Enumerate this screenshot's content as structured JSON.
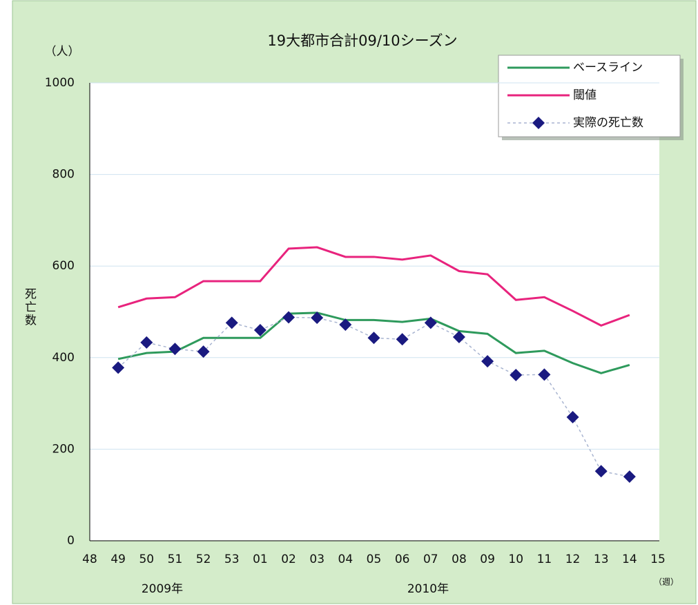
{
  "chart_data": {
    "type": "line",
    "title": "19大都市合計09/10シーズン",
    "y_unit": "（人）",
    "y_label": "死亡数",
    "x_unit": "（週）",
    "x_group_labels": [
      "2009年",
      "2010年"
    ],
    "categories": [
      "48",
      "49",
      "50",
      "51",
      "52",
      "53",
      "01",
      "02",
      "03",
      "04",
      "05",
      "06",
      "07",
      "08",
      "09",
      "10",
      "11",
      "12",
      "13",
      "14",
      "15"
    ],
    "ylim": [
      0,
      1000
    ],
    "yticks": [
      0,
      200,
      400,
      600,
      800,
      1000
    ],
    "grid": true,
    "legend": "top-right",
    "series": [
      {
        "name": "ベースライン",
        "color": "#2e9a5c",
        "style": "solid",
        "values": [
          null,
          397,
          410,
          413,
          443,
          443,
          443,
          496,
          498,
          482,
          482,
          478,
          485,
          458,
          452,
          410,
          415,
          388,
          366,
          384,
          null
        ]
      },
      {
        "name": "閾値",
        "color": "#e8237d",
        "style": "solid",
        "values": [
          null,
          510,
          529,
          532,
          567,
          567,
          567,
          638,
          641,
          620,
          620,
          614,
          623,
          589,
          582,
          526,
          532,
          502,
          470,
          493,
          null
        ]
      },
      {
        "name": "実際の死亡数",
        "color": "#1a1a80",
        "line_color": "#a8b4d0",
        "style": "dashed-marker",
        "values": [
          null,
          378,
          433,
          419,
          413,
          476,
          460,
          488,
          487,
          472,
          443,
          440,
          476,
          445,
          392,
          362,
          363,
          270,
          152,
          140,
          null
        ]
      }
    ]
  }
}
